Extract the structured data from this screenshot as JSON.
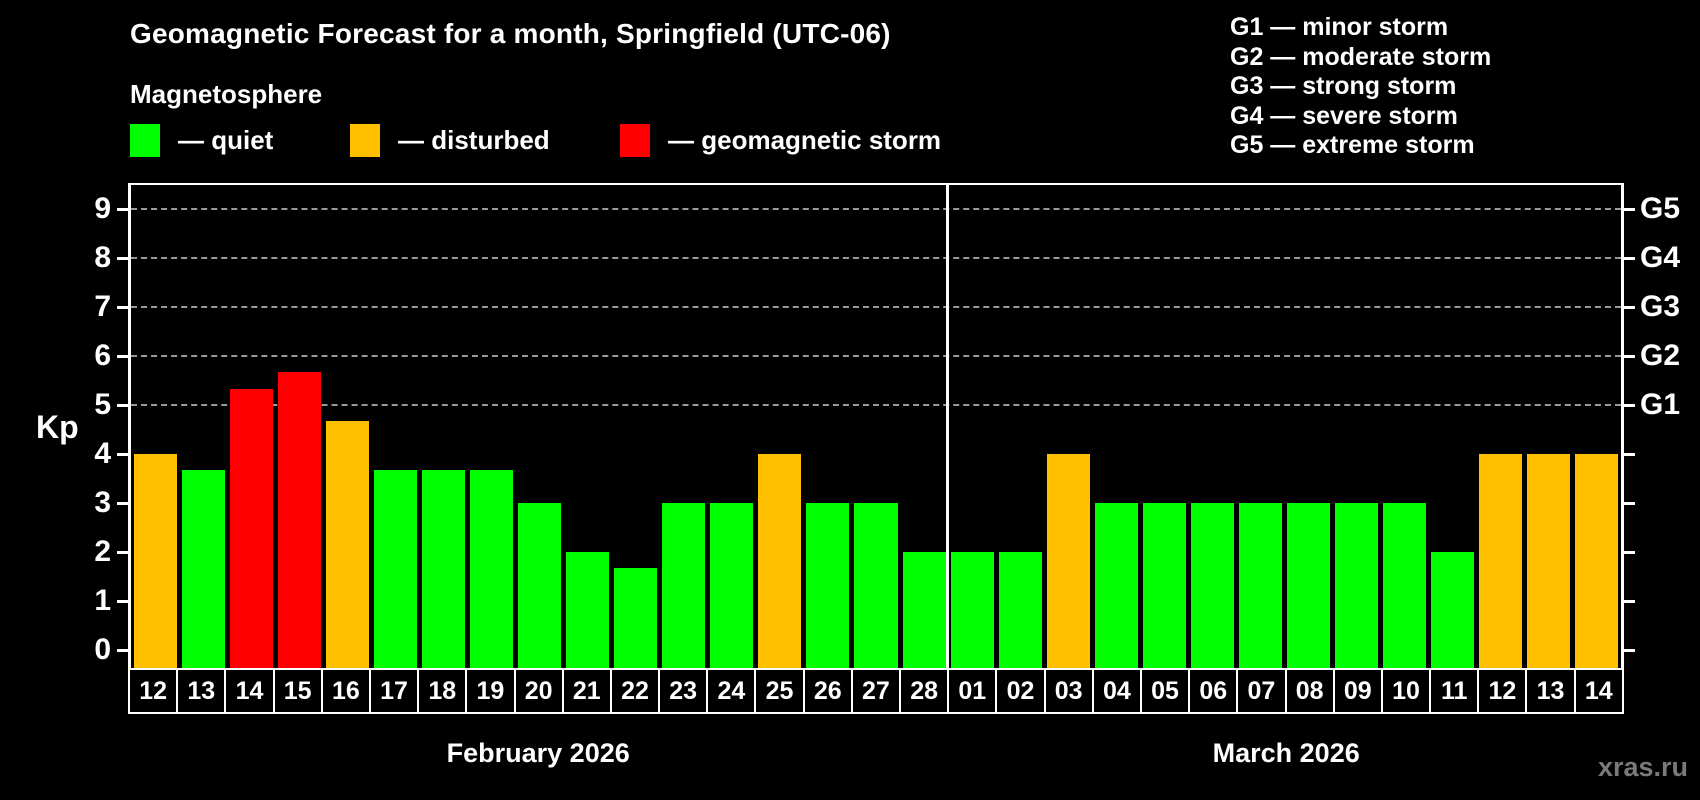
{
  "title": "Geomagnetic Forecast for a month, Springfield (UTC-06)",
  "subtitle": "Magnetosphere",
  "legend": {
    "quiet": "— quiet",
    "disturbed": "— disturbed",
    "storm": "— geomagnetic storm"
  },
  "storm_scale_legend": [
    "G1 — minor storm",
    "G2 — moderate storm",
    "G3 — strong storm",
    "G4 — severe storm",
    "G5 — extreme storm"
  ],
  "watermark": "xras.ru",
  "colors": {
    "quiet": "#00ff00",
    "disturbed": "#ffc000",
    "storm": "#ff0000",
    "gridline": "#999999",
    "axis": "#ffffff",
    "background": "#000000"
  },
  "chart_data": {
    "type": "bar",
    "title": "Geomagnetic Forecast for a month, Springfield (UTC-06)",
    "ylabel": "Kp",
    "ylim": [
      0,
      9.5
    ],
    "y_ticks": [
      0,
      1,
      2,
      3,
      4,
      5,
      6,
      7,
      8,
      9
    ],
    "grid": "dashed horizontal lines at Kp 5-9 only",
    "legend_position": "top",
    "g_levels": [
      {
        "label": "G1",
        "kp": 5
      },
      {
        "label": "G2",
        "kp": 6
      },
      {
        "label": "G3",
        "kp": 7
      },
      {
        "label": "G4",
        "kp": 8
      },
      {
        "label": "G5",
        "kp": 9
      }
    ],
    "months": [
      {
        "label": "February 2026",
        "days_count": 17
      },
      {
        "label": "March 2026",
        "days_count": 14
      }
    ],
    "days": [
      {
        "day": "12",
        "kp": 4.0,
        "status": "disturbed"
      },
      {
        "day": "13",
        "kp": 3.67,
        "status": "quiet"
      },
      {
        "day": "14",
        "kp": 5.33,
        "status": "storm"
      },
      {
        "day": "15",
        "kp": 5.67,
        "status": "storm"
      },
      {
        "day": "16",
        "kp": 4.67,
        "status": "disturbed"
      },
      {
        "day": "17",
        "kp": 3.67,
        "status": "quiet"
      },
      {
        "day": "18",
        "kp": 3.67,
        "status": "quiet"
      },
      {
        "day": "19",
        "kp": 3.67,
        "status": "quiet"
      },
      {
        "day": "20",
        "kp": 3.0,
        "status": "quiet"
      },
      {
        "day": "21",
        "kp": 2.0,
        "status": "quiet"
      },
      {
        "day": "22",
        "kp": 1.67,
        "status": "quiet"
      },
      {
        "day": "23",
        "kp": 3.0,
        "status": "quiet"
      },
      {
        "day": "24",
        "kp": 3.0,
        "status": "quiet"
      },
      {
        "day": "25",
        "kp": 4.0,
        "status": "disturbed"
      },
      {
        "day": "26",
        "kp": 3.0,
        "status": "quiet"
      },
      {
        "day": "27",
        "kp": 3.0,
        "status": "quiet"
      },
      {
        "day": "28",
        "kp": 2.0,
        "status": "quiet"
      },
      {
        "day": "01",
        "kp": 2.0,
        "status": "quiet"
      },
      {
        "day": "02",
        "kp": 2.0,
        "status": "quiet"
      },
      {
        "day": "03",
        "kp": 4.0,
        "status": "disturbed"
      },
      {
        "day": "04",
        "kp": 3.0,
        "status": "quiet"
      },
      {
        "day": "05",
        "kp": 3.0,
        "status": "quiet"
      },
      {
        "day": "06",
        "kp": 3.0,
        "status": "quiet"
      },
      {
        "day": "07",
        "kp": 3.0,
        "status": "quiet"
      },
      {
        "day": "08",
        "kp": 3.0,
        "status": "quiet"
      },
      {
        "day": "09",
        "kp": 3.0,
        "status": "quiet"
      },
      {
        "day": "10",
        "kp": 3.0,
        "status": "quiet"
      },
      {
        "day": "11",
        "kp": 2.0,
        "status": "quiet"
      },
      {
        "day": "12",
        "kp": 4.0,
        "status": "disturbed"
      },
      {
        "day": "13",
        "kp": 4.0,
        "status": "disturbed"
      },
      {
        "day": "14",
        "kp": 4.0,
        "status": "disturbed"
      }
    ]
  }
}
